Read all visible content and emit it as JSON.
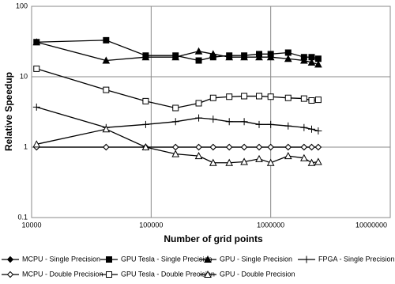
{
  "chart_data": {
    "type": "line",
    "x_label": "Number of grid points",
    "y_label": "Relative Speedup",
    "x": [
      11000,
      42000,
      90000,
      160000,
      250000,
      330000,
      450000,
      600000,
      800000,
      1000000,
      1400000,
      1900000,
      2200000,
      2500000
    ],
    "x_log": true,
    "y_log": true,
    "grid": true,
    "legend": "bottom",
    "xlim": [
      10000,
      10000000
    ],
    "xticks": [
      10000,
      100000,
      1000000,
      10000000
    ],
    "ylim": [
      0.1,
      100
    ],
    "yticks": [
      0.1,
      1,
      10,
      100
    ],
    "series": [
      {
        "name": "MCPU - Single Precision",
        "color": "#000000",
        "marker": "diamond",
        "filled": true,
        "values": [
          1,
          1,
          1,
          1,
          1,
          1,
          1,
          1,
          1,
          1,
          1,
          1,
          1,
          1
        ]
      },
      {
        "name": "GPU Tesla - Single Precision",
        "color": "#000000",
        "marker": "square",
        "filled": true,
        "values": [
          31,
          33,
          20,
          20,
          17,
          19,
          20,
          20,
          21,
          21,
          22,
          19,
          19,
          18
        ]
      },
      {
        "name": "GPU - Single Precision",
        "color": "#000000",
        "marker": "triangle",
        "filled": true,
        "values": [
          31,
          17,
          19,
          19,
          23,
          21,
          19,
          19,
          19,
          19,
          18,
          17,
          16,
          15
        ]
      },
      {
        "name": "FPGA - Single Precision",
        "color": "#000000",
        "marker": "plus",
        "filled": true,
        "values": [
          3.7,
          1.9,
          2.1,
          2.3,
          2.6,
          2.5,
          2.3,
          2.3,
          2.1,
          2.1,
          2.0,
          1.9,
          1.8,
          1.7
        ]
      },
      {
        "name": "MCPU - Double Precision",
        "color": "#000000",
        "marker": "diamond",
        "filled": false,
        "values": [
          1,
          1,
          1,
          1,
          1,
          1,
          1,
          1,
          1,
          1,
          1,
          1,
          1,
          1
        ]
      },
      {
        "name": "GPU Tesla - Double Precision",
        "color": "#000000",
        "marker": "square",
        "filled": false,
        "values": [
          13,
          6.5,
          4.5,
          3.6,
          4.2,
          5.0,
          5.2,
          5.3,
          5.3,
          5.2,
          5.0,
          4.9,
          4.6,
          4.7
        ]
      },
      {
        "name": "GPU - Double Precision",
        "color": "#000000",
        "marker": "triangle",
        "filled": false,
        "values": [
          1.1,
          1.8,
          1.0,
          0.8,
          0.75,
          0.6,
          0.6,
          0.62,
          0.68,
          0.6,
          0.75,
          0.7,
          0.6,
          0.62
        ]
      }
    ]
  }
}
